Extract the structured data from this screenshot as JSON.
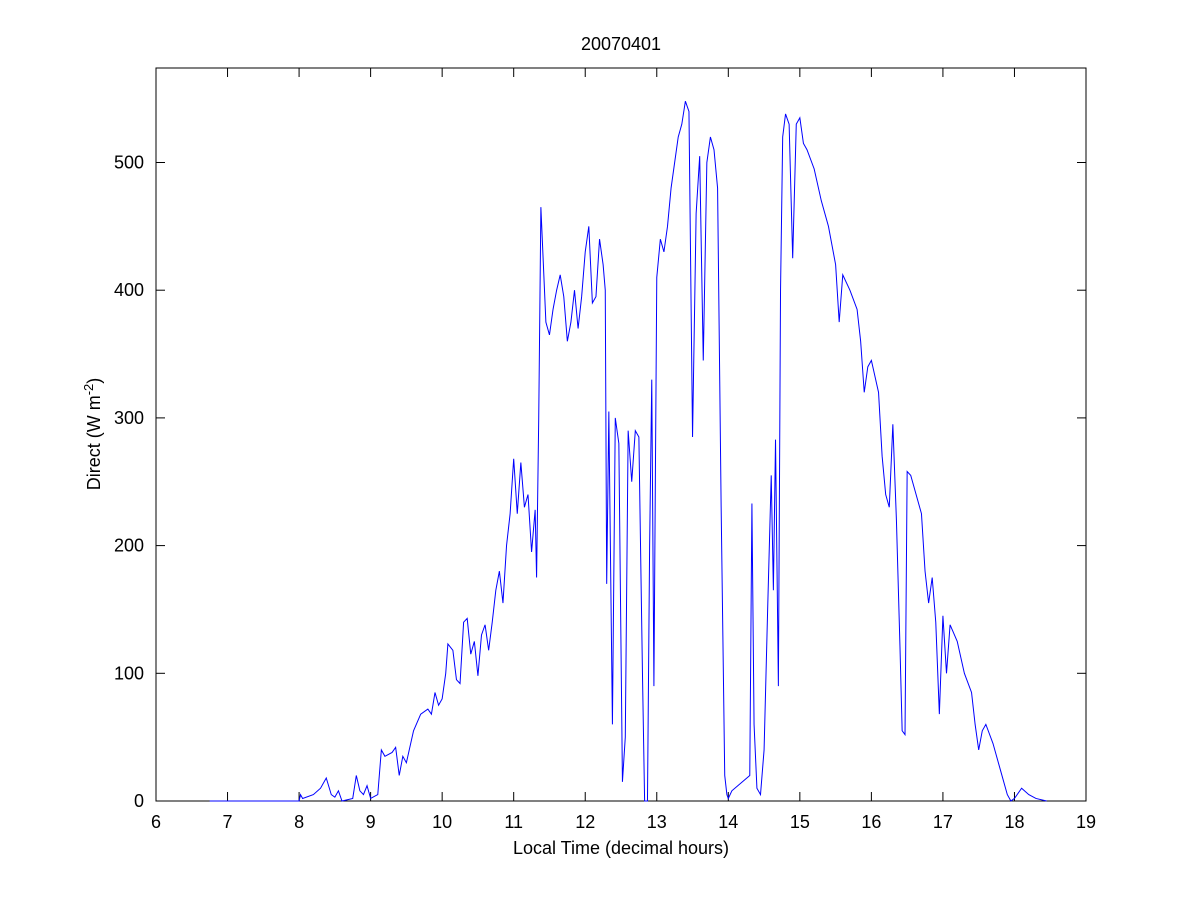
{
  "chart_data": {
    "type": "line",
    "title": "20070401",
    "xlabel": "Local Time (decimal hours)",
    "ylabel_parts": [
      "Direct (W m",
      "-2",
      ")"
    ],
    "color": "#0000ff",
    "xlim": [
      6,
      19
    ],
    "xticks": [
      6,
      7,
      8,
      9,
      10,
      11,
      12,
      13,
      14,
      15,
      16,
      17,
      18,
      19
    ],
    "ylim": [
      0,
      574
    ],
    "yticks": [
      0,
      100,
      200,
      300,
      400,
      500
    ],
    "x": [
      6.75,
      7.5,
      8.0,
      8.02,
      8.05,
      8.2,
      8.3,
      8.38,
      8.45,
      8.5,
      8.55,
      8.6,
      8.75,
      8.8,
      8.85,
      8.9,
      8.95,
      9.0,
      9.1,
      9.15,
      9.2,
      9.3,
      9.35,
      9.4,
      9.45,
      9.5,
      9.6,
      9.7,
      9.8,
      9.85,
      9.9,
      9.95,
      10.0,
      10.05,
      10.08,
      10.15,
      10.2,
      10.25,
      10.3,
      10.35,
      10.4,
      10.45,
      10.5,
      10.55,
      10.6,
      10.65,
      10.7,
      10.75,
      10.8,
      10.85,
      10.9,
      10.95,
      11.0,
      11.05,
      11.1,
      11.15,
      11.2,
      11.25,
      11.3,
      11.32,
      11.35,
      11.38,
      11.45,
      11.5,
      11.55,
      11.6,
      11.65,
      11.7,
      11.75,
      11.8,
      11.85,
      11.9,
      11.95,
      12.0,
      12.05,
      12.1,
      12.15,
      12.2,
      12.25,
      12.28,
      12.3,
      12.33,
      12.38,
      12.42,
      12.47,
      12.52,
      12.56,
      12.6,
      12.65,
      12.7,
      12.75,
      12.8,
      12.83,
      12.87,
      12.9,
      12.93,
      12.96,
      13.0,
      13.05,
      13.1,
      13.15,
      13.2,
      13.25,
      13.3,
      13.35,
      13.4,
      13.45,
      13.5,
      13.55,
      13.6,
      13.65,
      13.7,
      13.75,
      13.8,
      13.85,
      13.9,
      13.95,
      13.98,
      14.0,
      14.05,
      14.3,
      14.33,
      14.36,
      14.4,
      14.45,
      14.5,
      14.55,
      14.6,
      14.63,
      14.66,
      14.7,
      14.73,
      14.76,
      14.8,
      14.85,
      14.9,
      14.95,
      15.0,
      15.05,
      15.1,
      15.2,
      15.3,
      15.4,
      15.5,
      15.55,
      15.6,
      15.7,
      15.8,
      15.85,
      15.9,
      15.95,
      16.0,
      16.1,
      16.15,
      16.2,
      16.25,
      16.3,
      16.35,
      16.4,
      16.43,
      16.47,
      16.5,
      16.55,
      16.6,
      16.7,
      16.75,
      16.8,
      16.85,
      16.9,
      16.95,
      17.0,
      17.05,
      17.1,
      17.2,
      17.3,
      17.4,
      17.45,
      17.5,
      17.55,
      17.6,
      17.7,
      17.8,
      17.9,
      17.95,
      18.0,
      18.1,
      18.2,
      18.3,
      18.45
    ],
    "values": [
      0,
      0,
      0,
      5,
      2,
      5,
      10,
      18,
      5,
      3,
      8,
      0,
      2,
      20,
      8,
      5,
      12,
      2,
      5,
      40,
      35,
      38,
      42,
      20,
      35,
      30,
      55,
      68,
      72,
      68,
      85,
      75,
      80,
      100,
      123,
      118,
      95,
      92,
      140,
      143,
      115,
      125,
      98,
      130,
      138,
      118,
      140,
      165,
      180,
      155,
      200,
      225,
      268,
      225,
      265,
      230,
      240,
      195,
      228,
      175,
      300,
      465,
      375,
      365,
      385,
      400,
      412,
      395,
      360,
      375,
      400,
      370,
      395,
      430,
      450,
      390,
      395,
      440,
      420,
      400,
      170,
      305,
      60,
      300,
      280,
      15,
      50,
      290,
      250,
      290,
      285,
      100,
      0,
      0,
      200,
      330,
      90,
      410,
      440,
      430,
      450,
      480,
      500,
      520,
      530,
      548,
      540,
      285,
      460,
      505,
      345,
      500,
      520,
      510,
      480,
      230,
      20,
      5,
      2,
      8,
      20,
      233,
      60,
      10,
      5,
      40,
      150,
      255,
      165,
      283,
      90,
      400,
      520,
      538,
      530,
      425,
      530,
      535,
      515,
      510,
      495,
      470,
      450,
      420,
      375,
      412,
      400,
      385,
      360,
      320,
      340,
      345,
      320,
      270,
      240,
      230,
      295,
      220,
      120,
      55,
      52,
      258,
      255,
      245,
      225,
      180,
      155,
      175,
      140,
      68,
      145,
      100,
      138,
      125,
      100,
      85,
      60,
      40,
      55,
      60,
      45,
      25,
      5,
      0,
      2,
      10,
      5,
      2,
      0
    ]
  }
}
